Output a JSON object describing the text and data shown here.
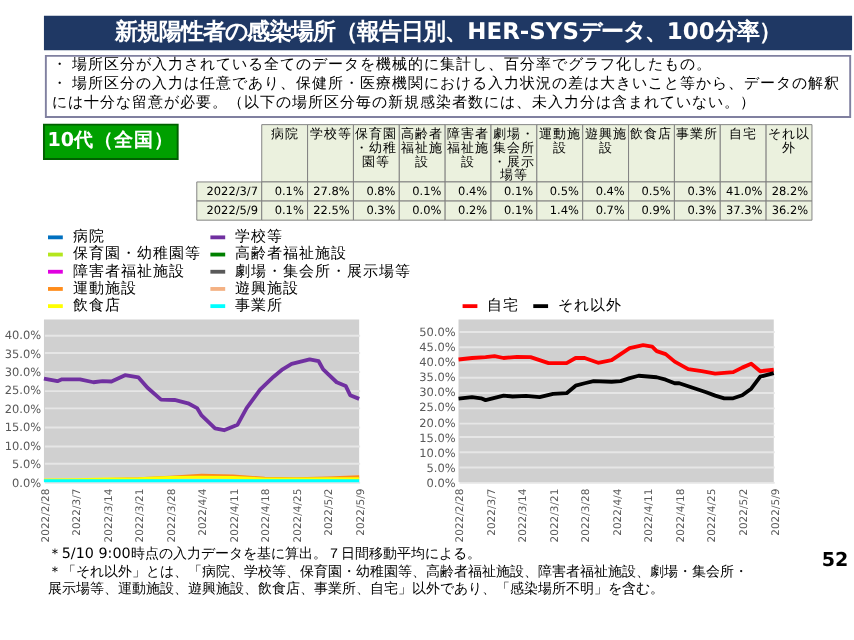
{
  "chart_data": [
    {
      "type": "other",
      "title": "新規陽性者の感染場所（報告日別、HER-SYSデータ、100分率）",
      "annotations": [
        "・ 場所区分が入力されている全てのデータを機械的に集計し、百分率でグラフ化したもの。",
        "・ 場所区分の入力は任意であり、保健所・医療機関における入力状況の差は大きいこと等から、データの解釈には十分な留意が必要。（以下の場所区分毎の新規感染者数には、未入力分は含まれていない。）"
      ]
    },
    {
      "type": "other",
      "title": "10代（全国）",
      "categories": [
        "病院",
        "学校等",
        "保育園・幼稚園等",
        "高齢者福祉施設",
        "障害者福祉施設",
        "劇場・集会所・展示場等",
        "運動施設",
        "遊興施設",
        "飲食店",
        "事業所",
        "自宅",
        "それ以外"
      ],
      "y_categories": [
        "2022/3/7",
        "2022/5/9"
      ],
      "cell_labels": [
        [
          "0.1%",
          "27.8%",
          "0.8%",
          "0.1%",
          "0.4%",
          "0.1%",
          "0.5%",
          "0.4%",
          "0.5%",
          "0.3%",
          "41.0%",
          "28.2%"
        ],
        [
          "0.1%",
          "22.5%",
          "0.3%",
          "0.0%",
          "0.2%",
          "0.1%",
          "1.4%",
          "0.7%",
          "0.9%",
          "0.3%",
          "37.3%",
          "36.2%"
        ]
      ]
    },
    {
      "type": "line",
      "legend": "top",
      "grid": "y",
      "line_style": "solid",
      "marker": "none",
      "x": [
        "2022-02-28",
        "2022-03-07",
        "2022-03-14",
        "2022-03-21",
        "2022-03-28",
        "2022-04-04",
        "2022-04-11",
        "2022-04-18",
        "2022-04-25",
        "2022-05-02",
        "2022-05-09"
      ],
      "xlim": [
        "2022-02-28",
        "2022-05-09"
      ],
      "xticks": [
        {
          "value": "2022-02-28",
          "label": "2022/2/28"
        },
        {
          "value": "2022-03-07",
          "label": "2022/3/7"
        },
        {
          "value": "2022-03-14",
          "label": "2022/3/14"
        },
        {
          "value": "2022-03-21",
          "label": "2022/3/21"
        },
        {
          "value": "2022-03-28",
          "label": "2022/3/28"
        },
        {
          "value": "2022-04-04",
          "label": "2022/4/4"
        },
        {
          "value": "2022-04-11",
          "label": "2022/4/11"
        },
        {
          "value": "2022-04-18",
          "label": "2022/4/18"
        },
        {
          "value": "2022-04-25",
          "label": "2022/4/25"
        },
        {
          "value": "2022-05-02",
          "label": "2022/5/2"
        },
        {
          "value": "2022-05-09",
          "label": "2022/5/9"
        }
      ],
      "ylim": [
        0,
        44
      ],
      "yticks": [
        {
          "value": 0,
          "label": "0.0%"
        },
        {
          "value": 5,
          "label": "5.0%"
        },
        {
          "value": 10,
          "label": "10.0%"
        },
        {
          "value": 15,
          "label": "15.0%"
        },
        {
          "value": 20,
          "label": "20.0%"
        },
        {
          "value": 25,
          "label": "25.0%"
        },
        {
          "value": 30,
          "label": "30.0%"
        },
        {
          "value": 35,
          "label": "35.0%"
        },
        {
          "value": 40,
          "label": "40.0%"
        }
      ],
      "series": [
        {
          "name": "病院",
          "color": "#0070c0",
          "values": [
            null,
            null,
            null,
            null,
            null,
            null,
            null,
            null,
            null,
            null,
            null
          ]
        },
        {
          "name": "学校等",
          "color": "#7030a0",
          "x": [
            "2022-02-28",
            "2022-03-03",
            "2022-03-04",
            "2022-03-08",
            "2022-03-11",
            "2022-03-13",
            "2022-03-15",
            "2022-03-18",
            "2022-03-21",
            "2022-03-23",
            "2022-03-26",
            "2022-03-29",
            "2022-04-01",
            "2022-04-03",
            "2022-04-04",
            "2022-04-07",
            "2022-04-09",
            "2022-04-12",
            "2022-04-14",
            "2022-04-17",
            "2022-04-20",
            "2022-04-22",
            "2022-04-24",
            "2022-04-28",
            "2022-04-30",
            "2022-05-01",
            "2022-05-04",
            "2022-05-06",
            "2022-05-07",
            "2022-05-09"
          ],
          "values": [
            28.0,
            27.3,
            27.8,
            27.8,
            27.0,
            27.3,
            27.2,
            28.9,
            28.3,
            25.5,
            22.3,
            22.2,
            21.3,
            20,
            18,
            14.5,
            14.0,
            15.5,
            20,
            25,
            28.5,
            30.5,
            32,
            33.2,
            32.7,
            30.5,
            27,
            26,
            23.5,
            22.5
          ]
        },
        {
          "name": "保育園・幼稚園等",
          "color": "#b4e61e",
          "values": [
            null,
            null,
            null,
            null,
            null,
            null,
            null,
            null,
            null,
            null,
            null
          ]
        },
        {
          "name": "高齢者福祉施設",
          "color": "#008000",
          "values": [
            null,
            null,
            null,
            null,
            null,
            null,
            null,
            null,
            null,
            null,
            null
          ]
        },
        {
          "name": "障害者福祉施設",
          "color": "#e000e0",
          "values": [
            null,
            null,
            null,
            null,
            null,
            null,
            null,
            null,
            null,
            null,
            null
          ]
        },
        {
          "name": "劇場・集会所・展示場等",
          "color": "#595959",
          "values": [
            null,
            null,
            null,
            null,
            null,
            null,
            null,
            null,
            null,
            null,
            null
          ]
        },
        {
          "name": "運動施設",
          "color": "#ff8c1a",
          "values": [
            null,
            null,
            0.7,
            0.9,
            1.3,
            1.8,
            1.6,
            1.0,
            0.9,
            1.1,
            1.4
          ]
        },
        {
          "name": "遊興施設",
          "color": "#f4b183",
          "values": [
            null,
            null,
            null,
            null,
            null,
            null,
            null,
            null,
            null,
            null,
            null
          ]
        },
        {
          "name": "飲食店",
          "color": "#ffff00",
          "values": [
            0.5,
            0.6,
            0.8,
            0.9,
            1.2,
            1.3,
            1.2,
            0.8,
            0.8,
            0.9,
            0.9
          ]
        },
        {
          "name": "事業所",
          "color": "#00ffff",
          "values": [
            0.3,
            0.3,
            0.3,
            0.3,
            0.3,
            0.3,
            0.3,
            0.3,
            0.3,
            0.3,
            0.3
          ]
        }
      ]
    },
    {
      "type": "line",
      "legend": "top",
      "grid": "y",
      "line_style": "solid",
      "marker": "none",
      "xlim": [
        "2022-02-28",
        "2022-05-09"
      ],
      "xticks": [
        {
          "value": "2022-02-28",
          "label": "2022/2/28"
        },
        {
          "value": "2022-03-07",
          "label": "2022/3/7"
        },
        {
          "value": "2022-03-14",
          "label": "2022/3/14"
        },
        {
          "value": "2022-03-21",
          "label": "2022/3/21"
        },
        {
          "value": "2022-03-28",
          "label": "2022/3/28"
        },
        {
          "value": "2022-04-04",
          "label": "2022/4/4"
        },
        {
          "value": "2022-04-11",
          "label": "2022/4/11"
        },
        {
          "value": "2022-04-18",
          "label": "2022/4/18"
        },
        {
          "value": "2022-04-25",
          "label": "2022/4/25"
        },
        {
          "value": "2022-05-02",
          "label": "2022/5/2"
        },
        {
          "value": "2022-05-09",
          "label": "2022/5/9"
        }
      ],
      "ylim": [
        0,
        54
      ],
      "yticks": [
        {
          "value": 0,
          "label": "0.0%"
        },
        {
          "value": 5,
          "label": "5.0%"
        },
        {
          "value": 10,
          "label": "10.0%"
        },
        {
          "value": 15,
          "label": "15.0%"
        },
        {
          "value": 20,
          "label": "20.0%"
        },
        {
          "value": 25,
          "label": "25.0%"
        },
        {
          "value": 30,
          "label": "30.0%"
        },
        {
          "value": 35,
          "label": "35.0%"
        },
        {
          "value": 40,
          "label": "40.0%"
        },
        {
          "value": 45,
          "label": "45.0%"
        },
        {
          "value": 50,
          "label": "50.0%"
        }
      ],
      "series": [
        {
          "name": "自宅",
          "color": "#ff0000",
          "x": [
            "2022-02-28",
            "2022-03-03",
            "2022-03-06",
            "2022-03-08",
            "2022-03-10",
            "2022-03-13",
            "2022-03-16",
            "2022-03-18",
            "2022-03-20",
            "2022-03-24",
            "2022-03-26",
            "2022-03-28",
            "2022-03-31",
            "2022-04-03",
            "2022-04-05",
            "2022-04-07",
            "2022-04-10",
            "2022-04-12",
            "2022-04-13",
            "2022-04-15",
            "2022-04-17",
            "2022-04-20",
            "2022-04-23",
            "2022-04-26",
            "2022-04-30",
            "2022-05-02",
            "2022-05-04",
            "2022-05-06",
            "2022-05-09"
          ],
          "values": [
            40.7,
            41.2,
            41.5,
            41.8,
            41.2,
            41.6,
            41.5,
            40.5,
            39.5,
            39.5,
            41.2,
            41.2,
            39.6,
            40.5,
            42.5,
            44.5,
            45.5,
            45,
            43.5,
            42.5,
            40,
            37.5,
            36.8,
            36,
            36.5,
            38,
            39.3,
            36.8,
            37.3
          ]
        },
        {
          "name": "それ以外",
          "color": "#000000",
          "x": [
            "2022-02-28",
            "2022-03-03",
            "2022-03-05",
            "2022-03-06",
            "2022-03-10",
            "2022-03-12",
            "2022-03-15",
            "2022-03-18",
            "2022-03-21",
            "2022-03-24",
            "2022-03-26",
            "2022-03-28",
            "2022-03-30",
            "2022-04-03",
            "2022-04-05",
            "2022-04-07",
            "2022-04-09",
            "2022-04-13",
            "2022-04-15",
            "2022-04-17",
            "2022-04-18",
            "2022-04-21",
            "2022-04-24",
            "2022-04-26",
            "2022-04-28",
            "2022-04-30",
            "2022-05-02",
            "2022-05-04",
            "2022-05-06",
            "2022-05-09"
          ],
          "values": [
            27.7,
            28.2,
            27.8,
            27.2,
            28.7,
            28.4,
            28.6,
            28.2,
            29.3,
            29.5,
            32,
            32.8,
            33.5,
            33.3,
            33.5,
            34.5,
            35.3,
            34.8,
            34,
            32.8,
            32.8,
            31.3,
            29.8,
            28.7,
            27.8,
            27.8,
            28.8,
            31,
            35,
            36.2
          ]
        }
      ]
    },
    {
      "type": "other",
      "annotations": [
        "＊5/10 9:00時点の入力データを基に算出。７日間移動平均による。",
        "＊「それ以外」とは、「病院、学校等、保育園・幼稚園等、高齢者福祉施設、障害者福祉施設、劇場・集会所・展示場等、運動施設、遊興施設、飲食店、事業所、自宅」以外であり、「感染場所不明」を含む。",
        "52"
      ]
    }
  ]
}
